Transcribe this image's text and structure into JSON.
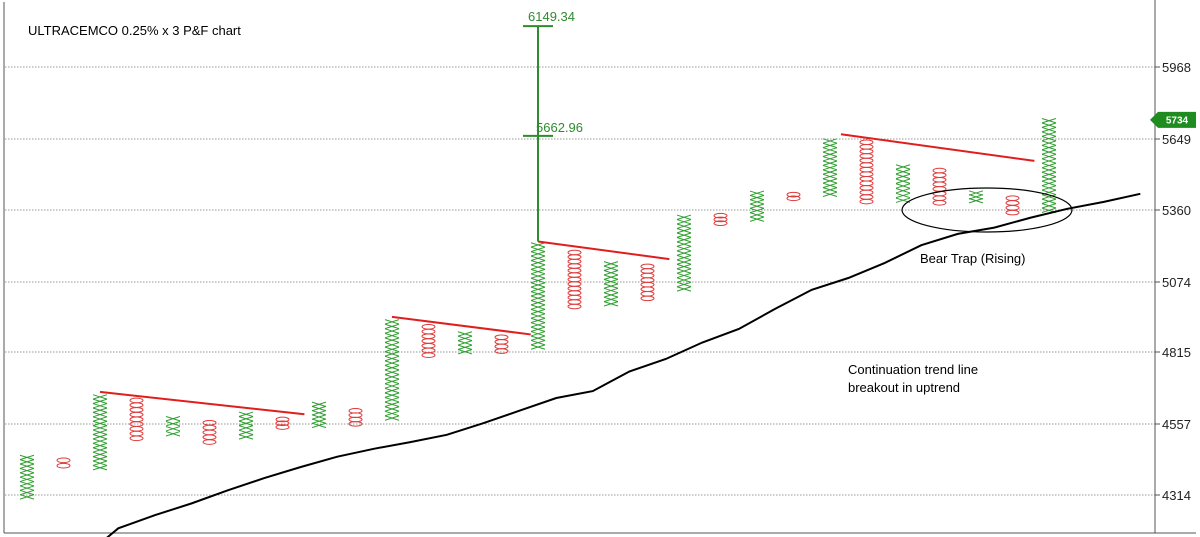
{
  "chart_data": {
    "type": "point-and-figure",
    "title": "ULTRACEMCO 0.25% x 3 P&F chart",
    "y_ticks": [
      4314,
      4557,
      4815,
      5074,
      5360,
      5649,
      5968
    ],
    "ylim": [
      4200,
      6210
    ],
    "grid": "horizontal dotted",
    "last_price": "5734",
    "colors": {
      "x": "#2e9e2e",
      "o": "#e03a3a",
      "trend": "#e01e1e",
      "ma": "#000000",
      "measure": "#2e8b2e",
      "last_bg": "#1e8c1e"
    },
    "columns": [
      {
        "type": "X",
        "low": 4300,
        "high": 4450
      },
      {
        "type": "O",
        "low": 4405,
        "high": 4442
      },
      {
        "type": "X",
        "low": 4400,
        "high": 4662
      },
      {
        "type": "O",
        "low": 4500,
        "high": 4650
      },
      {
        "type": "X",
        "low": 4515,
        "high": 4585
      },
      {
        "type": "O",
        "low": 4487,
        "high": 4570
      },
      {
        "type": "X",
        "low": 4505,
        "high": 4600
      },
      {
        "type": "O",
        "low": 4540,
        "high": 4580
      },
      {
        "type": "X",
        "low": 4545,
        "high": 4635
      },
      {
        "type": "O",
        "low": 4550,
        "high": 4612
      },
      {
        "type": "X",
        "low": 4570,
        "high": 4935
      },
      {
        "type": "O",
        "low": 4795,
        "high": 4917
      },
      {
        "type": "X",
        "low": 4808,
        "high": 4890
      },
      {
        "type": "O",
        "low": 4810,
        "high": 4878
      },
      {
        "type": "X",
        "low": 4825,
        "high": 5230
      },
      {
        "type": "O",
        "low": 4975,
        "high": 5200
      },
      {
        "type": "X",
        "low": 4985,
        "high": 5155
      },
      {
        "type": "O",
        "low": 5005,
        "high": 5145
      },
      {
        "type": "X",
        "low": 5040,
        "high": 5340
      },
      {
        "type": "O",
        "low": 5300,
        "high": 5345
      },
      {
        "type": "X",
        "low": 5315,
        "high": 5437
      },
      {
        "type": "O",
        "low": 5400,
        "high": 5430
      },
      {
        "type": "X",
        "low": 5415,
        "high": 5650
      },
      {
        "type": "O",
        "low": 5385,
        "high": 5645
      },
      {
        "type": "X",
        "low": 5390,
        "high": 5545
      },
      {
        "type": "O",
        "low": 5380,
        "high": 5530
      },
      {
        "type": "X",
        "low": 5390,
        "high": 5437
      },
      {
        "type": "O",
        "low": 5340,
        "high": 5418
      },
      {
        "type": "X",
        "low": 5350,
        "high": 5740
      }
    ],
    "moving_average": [
      4200,
      4245,
      4285,
      4330,
      4372,
      4410,
      4445,
      4472,
      4495,
      4520,
      4560,
      4605,
      4650,
      4675,
      4745,
      4790,
      4850,
      4900,
      4975,
      5045,
      5090,
      5150,
      5220,
      5265,
      5290,
      5330,
      5365,
      5393,
      5426
    ],
    "trend_lines": [
      {
        "from": [
          2,
          4672
        ],
        "to": [
          7.6,
          4592
        ]
      },
      {
        "from": [
          10,
          4945
        ],
        "to": [
          13.8,
          4880
        ]
      },
      {
        "from": [
          14,
          5235
        ],
        "to": [
          17.6,
          5165
        ]
      },
      {
        "from": [
          22.3,
          5670
        ],
        "to": [
          27.6,
          5560
        ]
      }
    ],
    "measured_move": {
      "column": 14,
      "base": 5235,
      "mid": 5662.96,
      "top": 6149.34,
      "mid_label": "5662.96",
      "top_label": "6149.34"
    },
    "annotations": {
      "bear_trap": "Bear Trap (Rising)",
      "continuation_line1": "Continuation trend line",
      "continuation_line2": "breakout in uptrend"
    }
  }
}
